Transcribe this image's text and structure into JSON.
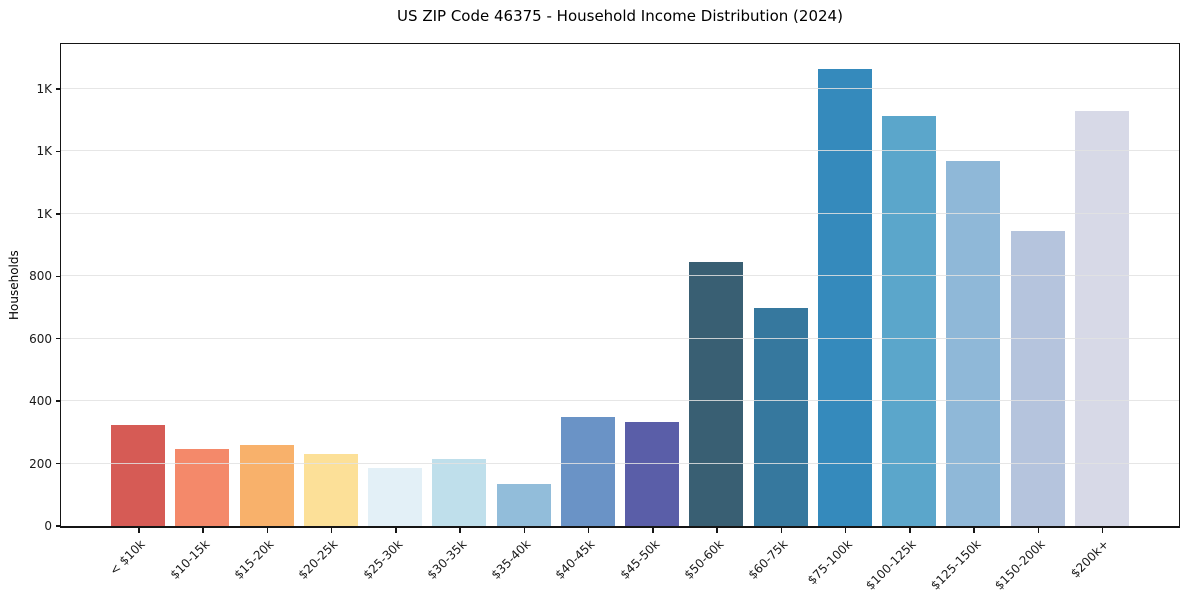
{
  "chart_data": {
    "type": "bar",
    "title": "US ZIP Code 46375 - Household Income Distribution (2024)",
    "xlabel": "",
    "ylabel": "Households",
    "categories": [
      "< $10k",
      "$10-15k",
      "$15-20k",
      "$20-25k",
      "$25-30k",
      "$30-35k",
      "$35-40k",
      "$40-45k",
      "$45-50k",
      "$50-60k",
      "$60-75k",
      "$75-100k",
      "$100-125k",
      "$125-150k",
      "$150-200k",
      "$200k+"
    ],
    "values": [
      322,
      246,
      258,
      230,
      187,
      214,
      136,
      348,
      332,
      846,
      698,
      1464,
      1314,
      1170,
      944,
      1330
    ],
    "bar_colors": [
      "#d65b55",
      "#f4896a",
      "#f8b16b",
      "#fce098",
      "#e3f0f7",
      "#bfdfeb",
      "#92bdda",
      "#6a93c6",
      "#5a5ea8",
      "#395f73",
      "#36789e",
      "#358abc",
      "#5ba6cb",
      "#8fb8d8",
      "#b5c4dd",
      "#d7d9e7"
    ],
    "ylim": [
      0,
      1544
    ],
    "yticks": {
      "values": [
        0,
        200,
        400,
        600,
        800,
        1000,
        1200,
        1400
      ],
      "labels": [
        "0",
        "200",
        "400",
        "600",
        "800",
        "1K",
        "1K",
        "1K"
      ]
    },
    "grid": "horizontal",
    "legend": "none",
    "xtick_rotation": 45
  },
  "colors": {
    "background": "#ffffff",
    "grid": "#e4e4e4",
    "spine": "#151515",
    "text": "#000000"
  }
}
